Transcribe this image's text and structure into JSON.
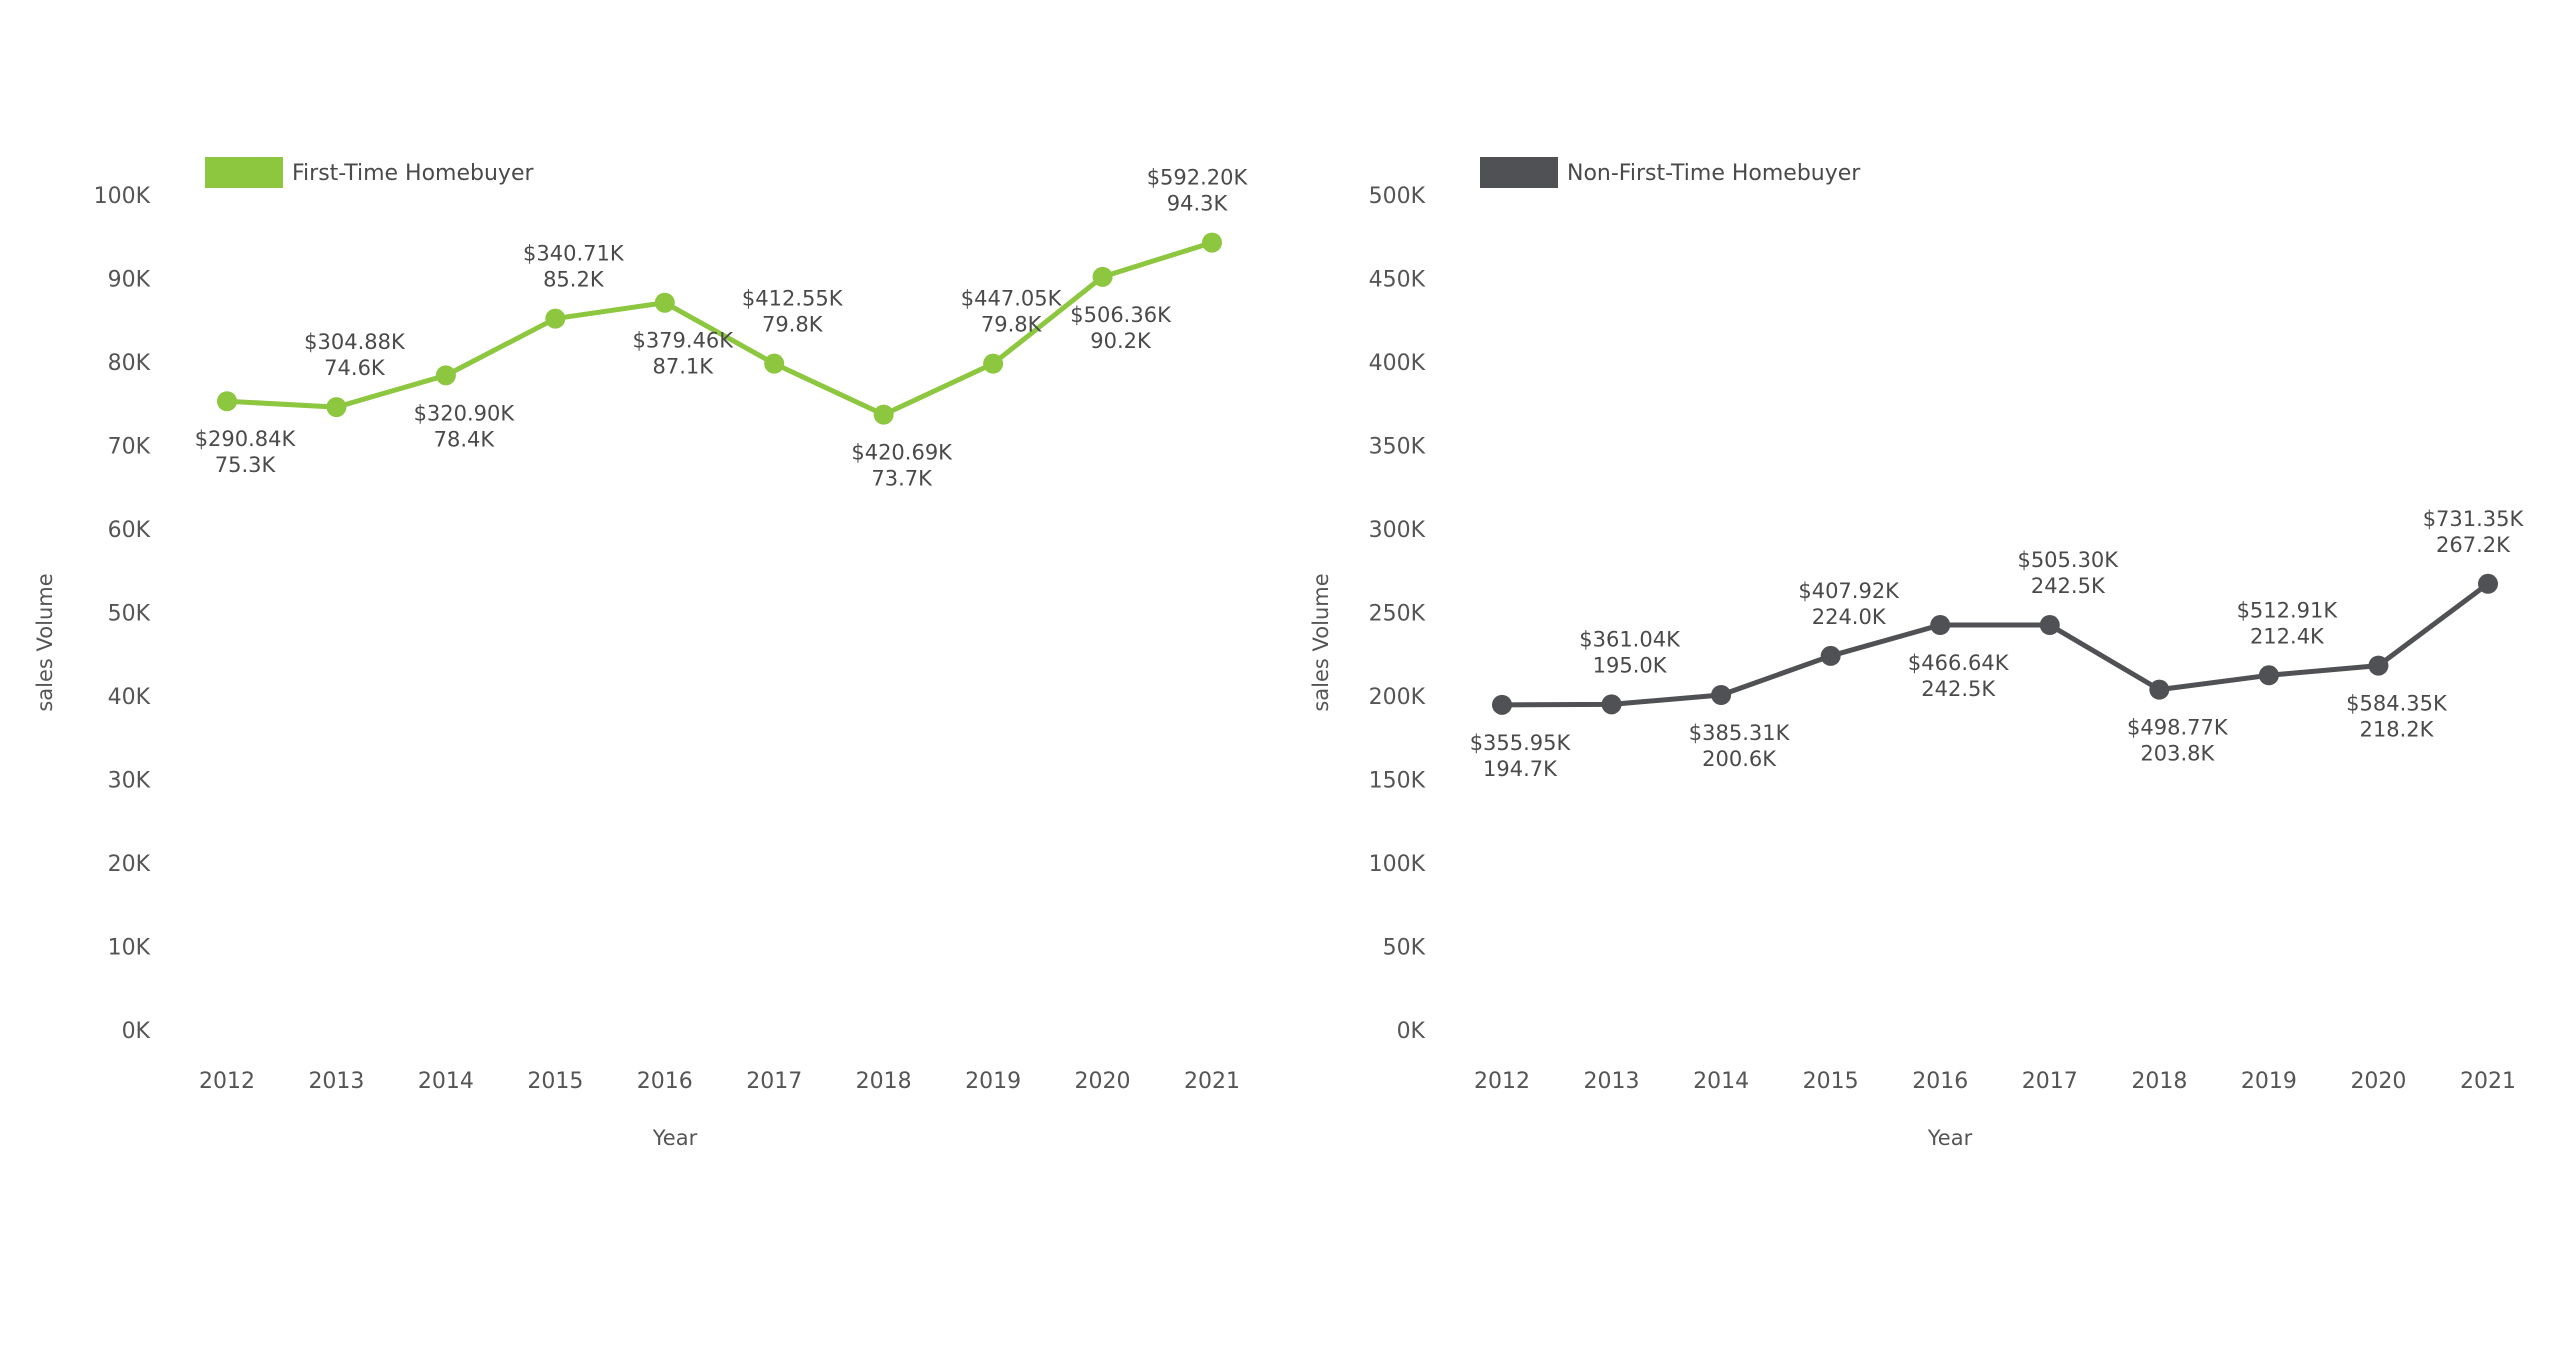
{
  "chart_data": [
    {
      "type": "line",
      "legend": "First-Time Homebuyer",
      "legend_placement": "top-left",
      "color": "#8dc63f",
      "xlabel": "Year",
      "ylabel": "sales Volume",
      "x": [
        "2012",
        "2013",
        "2014",
        "2015",
        "2016",
        "2017",
        "2018",
        "2019",
        "2020",
        "2021"
      ],
      "values": [
        75.3,
        74.6,
        78.4,
        85.2,
        87.1,
        79.8,
        73.7,
        79.8,
        90.2,
        94.3
      ],
      "ylim": [
        0,
        100
      ],
      "yticks": [
        "0K",
        "10K",
        "20K",
        "30K",
        "40K",
        "50K",
        "60K",
        "70K",
        "80K",
        "90K",
        "100K"
      ],
      "grid": false,
      "annotations": [
        {
          "price": "$290.84K",
          "volume": "75.3K",
          "position": "below"
        },
        {
          "price": "$304.88K",
          "volume": "74.6K",
          "position": "above"
        },
        {
          "price": "$320.90K",
          "volume": "78.4K",
          "position": "below"
        },
        {
          "price": "$340.71K",
          "volume": "85.2K",
          "position": "above"
        },
        {
          "price": "$379.46K",
          "volume": "87.1K",
          "position": "below"
        },
        {
          "price": "$412.55K",
          "volume": "79.8K",
          "position": "above"
        },
        {
          "price": "$420.69K",
          "volume": "73.7K",
          "position": "below"
        },
        {
          "price": "$447.05K",
          "volume": "79.8K",
          "position": "above"
        },
        {
          "price": "$506.36K",
          "volume": "90.2K",
          "position": "below"
        },
        {
          "price": "$592.20K",
          "volume": "94.3K",
          "position": "above"
        }
      ]
    },
    {
      "type": "line",
      "legend": "Non-First-Time Homebuyer",
      "legend_placement": "top-left",
      "color": "#505155",
      "xlabel": "Year",
      "ylabel": "sales Volume",
      "x": [
        "2012",
        "2013",
        "2014",
        "2015",
        "2016",
        "2017",
        "2018",
        "2019",
        "2020",
        "2021"
      ],
      "values": [
        194.7,
        195.0,
        200.6,
        224.0,
        242.5,
        242.5,
        203.8,
        212.4,
        218.2,
        267.2
      ],
      "ylim": [
        0,
        500
      ],
      "yticks": [
        "0K",
        "50K",
        "100K",
        "150K",
        "200K",
        "250K",
        "300K",
        "350K",
        "400K",
        "450K",
        "500K"
      ],
      "grid": false,
      "annotations": [
        {
          "price": "$355.95K",
          "volume": "194.7K",
          "position": "below"
        },
        {
          "price": "$361.04K",
          "volume": "195.0K",
          "position": "above"
        },
        {
          "price": "$385.31K",
          "volume": "200.6K",
          "position": "below"
        },
        {
          "price": "$407.92K",
          "volume": "224.0K",
          "position": "above"
        },
        {
          "price": "$466.64K",
          "volume": "242.5K",
          "position": "below"
        },
        {
          "price": "$505.30K",
          "volume": "242.5K",
          "position": "above"
        },
        {
          "price": "$498.77K",
          "volume": "203.8K",
          "position": "below"
        },
        {
          "price": "$512.91K",
          "volume": "212.4K",
          "position": "above"
        },
        {
          "price": "$584.35K",
          "volume": "218.2K",
          "position": "below"
        },
        {
          "price": "$731.35K",
          "volume": "267.2K",
          "position": "above"
        }
      ]
    }
  ]
}
